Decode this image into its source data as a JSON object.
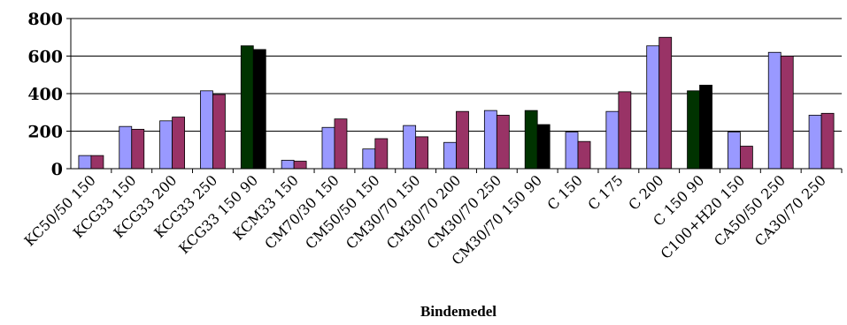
{
  "chart_data": {
    "type": "bar",
    "title": "",
    "xlabel": "Bindemedel",
    "ylabel": "",
    "ylim": [
      0,
      800
    ],
    "yticks": [
      0,
      200,
      400,
      600,
      800
    ],
    "grid": true,
    "legend": "none",
    "categories": [
      "KC50/50 150",
      "KCG33 150",
      "KCG33 200",
      "KCG33 250",
      "KCG33 150 90",
      "KCM33 150",
      "CM70/30 150",
      "CM50/50 150",
      "CM30/70 150",
      "CM30/70 200",
      "CM30/70 250",
      "CM30/70 150 90",
      "C 150",
      "C 175",
      "C 200",
      "C 150 90",
      "C100+H20 150",
      "CA50/50 250",
      "CA30/70 250"
    ],
    "series": [
      {
        "values": [
          70,
          225,
          255,
          415,
          655,
          45,
          220,
          105,
          230,
          140,
          310,
          310,
          195,
          305,
          655,
          415,
          195,
          620,
          285
        ]
      },
      {
        "values": [
          70,
          210,
          275,
          395,
          635,
          40,
          265,
          160,
          170,
          305,
          285,
          235,
          145,
          410,
          700,
          445,
          120,
          600,
          295
        ]
      }
    ],
    "colors": {
      "series1": "#9999ff",
      "series2": "#993366",
      "series1_alt": "#003300",
      "series2_alt": "#000000"
    },
    "alt_color_categories": [
      "KCG33 150 90",
      "CM30/70 150 90",
      "C 150 90"
    ]
  }
}
